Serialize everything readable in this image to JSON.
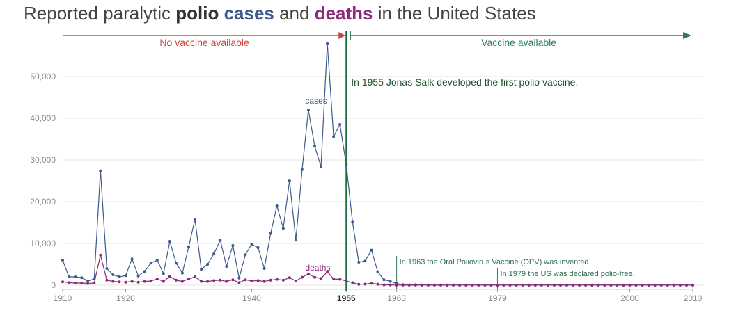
{
  "chart_data": {
    "type": "line",
    "title_parts": {
      "p1": "Reported paralytic ",
      "p2": "polio",
      "p3": " ",
      "p4": "cases",
      "p5": " and ",
      "p6": "deaths",
      "p7": " in the United States"
    },
    "colors": {
      "cases": "#3d5a8a",
      "deaths": "#8b2a7a",
      "no_vaccine_arrow": "#c9453c",
      "vaccine_arrow": "#2e7d5b",
      "vaccine_line": "#1f6e3f",
      "grid": "#e6e6e6",
      "title": "#444444"
    },
    "xlim": [
      1910,
      2010
    ],
    "ylim": [
      0,
      60000
    ],
    "x_ticks": [
      {
        "value": 1910,
        "label": "1910",
        "bold": false
      },
      {
        "value": 1920,
        "label": "1920",
        "bold": false
      },
      {
        "value": 1940,
        "label": "1940",
        "bold": false
      },
      {
        "value": 1955,
        "label": "1955",
        "bold": true
      },
      {
        "value": 1963,
        "label": "1963",
        "bold": false
      },
      {
        "value": 1979,
        "label": "1979",
        "bold": false
      },
      {
        "value": 2000,
        "label": "2000",
        "bold": false
      },
      {
        "value": 2010,
        "label": "2010",
        "bold": false
      }
    ],
    "y_ticks": [
      {
        "value": 0,
        "label": "0"
      },
      {
        "value": 10000,
        "label": "10,000"
      },
      {
        "value": 20000,
        "label": "20,000"
      },
      {
        "value": 30000,
        "label": "30,000"
      },
      {
        "value": 40000,
        "label": "40,000"
      },
      {
        "value": 50000,
        "label": "50,000"
      }
    ],
    "grid": true,
    "series": [
      {
        "name": "cases",
        "x": [
          1910,
          1911,
          1912,
          1913,
          1914,
          1915,
          1916,
          1917,
          1918,
          1919,
          1920,
          1921,
          1922,
          1923,
          1924,
          1925,
          1926,
          1927,
          1928,
          1929,
          1930,
          1931,
          1932,
          1933,
          1934,
          1935,
          1936,
          1937,
          1938,
          1939,
          1940,
          1941,
          1942,
          1943,
          1944,
          1945,
          1946,
          1947,
          1948,
          1949,
          1950,
          1951,
          1952,
          1953,
          1954,
          1955,
          1956,
          1957,
          1958,
          1959,
          1960,
          1961,
          1962,
          1963,
          1964,
          1965,
          1966,
          1967,
          1968,
          1969,
          1970,
          1971,
          1972,
          1973,
          1974,
          1975,
          1976,
          1977,
          1978,
          1979,
          1980,
          1981,
          1982,
          1983,
          1984,
          1985,
          1986,
          1987,
          1988,
          1989,
          1990,
          1991,
          1992,
          1993,
          1994,
          1995,
          1996,
          1997,
          1998,
          1999,
          2000,
          2001,
          2002,
          2003,
          2004,
          2005,
          2006,
          2007,
          2008,
          2009,
          2010
        ],
        "y": [
          6000,
          2000,
          2000,
          1800,
          1000,
          1500,
          27400,
          4000,
          2500,
          2000,
          2300,
          6300,
          2200,
          3300,
          5300,
          6000,
          2800,
          10500,
          5300,
          2900,
          9200,
          15800,
          3800,
          5000,
          7500,
          10800,
          4500,
          9500,
          1700,
          7300,
          9800,
          9000,
          4000,
          12400,
          19000,
          13600,
          25000,
          10800,
          27700,
          42000,
          33300,
          28400,
          57900,
          35600,
          38500,
          28900,
          15100,
          5500,
          5800,
          8400,
          3200,
          1300,
          900,
          400,
          120,
          70,
          100,
          40,
          50,
          30,
          35,
          20,
          30,
          10,
          15,
          10,
          15,
          20,
          15,
          20,
          10,
          10,
          10,
          10,
          10,
          10,
          10,
          10,
          10,
          10,
          10,
          10,
          10,
          10,
          10,
          10,
          10,
          10,
          10,
          10,
          10,
          10,
          10,
          10,
          10,
          10,
          10,
          10,
          10,
          10,
          10
        ]
      },
      {
        "name": "deaths",
        "x": [
          1910,
          1911,
          1912,
          1913,
          1914,
          1915,
          1916,
          1917,
          1918,
          1919,
          1920,
          1921,
          1922,
          1923,
          1924,
          1925,
          1926,
          1927,
          1928,
          1929,
          1930,
          1931,
          1932,
          1933,
          1934,
          1935,
          1936,
          1937,
          1938,
          1939,
          1940,
          1941,
          1942,
          1943,
          1944,
          1945,
          1946,
          1947,
          1948,
          1949,
          1950,
          1951,
          1952,
          1953,
          1954,
          1955,
          1956,
          1957,
          1958,
          1959,
          1960,
          1961,
          1962,
          1963,
          1964,
          1965,
          1966,
          1967,
          1968,
          1969,
          1970,
          1971,
          1972,
          1973,
          1974,
          1975,
          1976,
          1977,
          1978,
          1979,
          1980,
          1981,
          1982,
          1983,
          1984,
          1985,
          1986,
          1987,
          1988,
          1989,
          1990,
          1991,
          1992,
          1993,
          1994,
          1995,
          1996,
          1997,
          1998,
          1999,
          2000,
          2001,
          2002,
          2003,
          2004,
          2005,
          2006,
          2007,
          2008,
          2009,
          2010
        ],
        "y": [
          800,
          600,
          500,
          500,
          400,
          500,
          7200,
          1200,
          900,
          800,
          700,
          900,
          700,
          900,
          1000,
          1500,
          900,
          2100,
          1200,
          900,
          1500,
          2000,
          900,
          900,
          1100,
          1200,
          900,
          1300,
          600,
          1300,
          1000,
          1100,
          900,
          1200,
          1400,
          1200,
          1800,
          1000,
          1900,
          2700,
          1900,
          1600,
          3200,
          1500,
          1400,
          1000,
          600,
          220,
          250,
          450,
          230,
          90,
          60,
          40,
          20,
          10,
          10,
          10,
          10,
          10,
          10,
          10,
          10,
          10,
          10,
          10,
          10,
          10,
          10,
          10,
          10,
          10,
          10,
          10,
          10,
          10,
          10,
          10,
          10,
          10,
          10,
          10,
          10,
          10,
          10,
          10,
          10,
          10,
          10,
          10,
          10,
          10,
          10,
          10,
          10,
          10,
          10,
          10,
          10,
          10,
          10
        ]
      }
    ],
    "labels": {
      "cases": "cases",
      "deaths": "deaths",
      "no_vaccine": "No vaccine available",
      "vaccine": "Vaccine available",
      "salk": "In 1955 Jonas Salk developed the first polio vaccine.",
      "opv": "In 1963 the Oral Poliovirus Vaccine (OPV) was invented",
      "free": "In 1979 the US was declared polio-free."
    }
  }
}
